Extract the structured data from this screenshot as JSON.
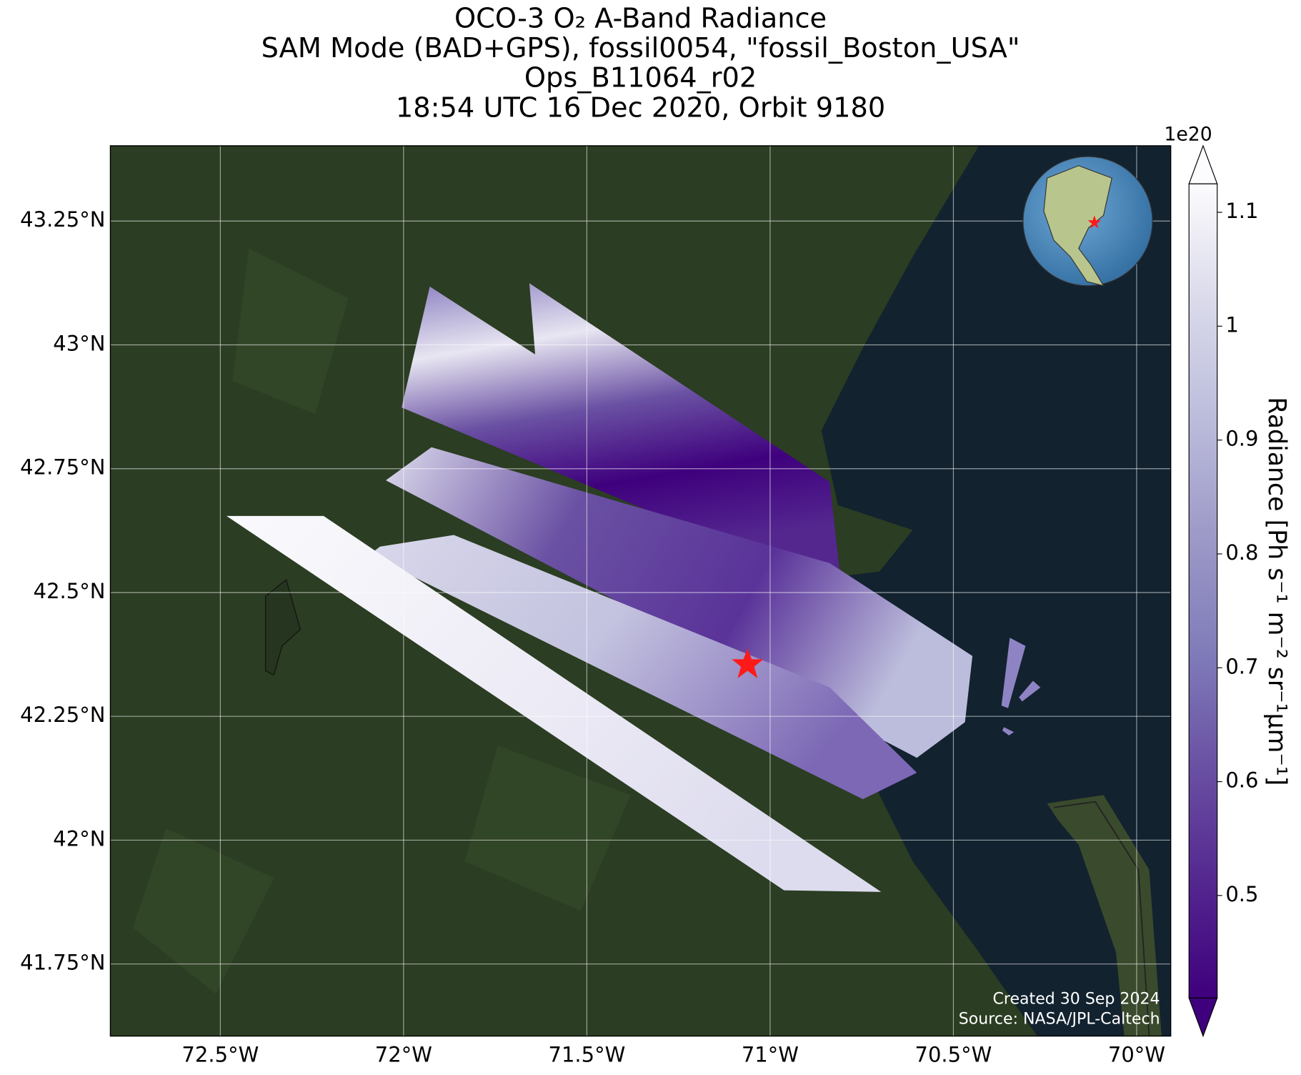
{
  "chart_data": {
    "type": "map",
    "title": [
      "OCO-3 O₂ A-Band Radiance",
      "SAM Mode (BAD+GPS), fossil0054, \"fossil_Boston_USA\"",
      "Ops_B11064_r02",
      "18:54 UTC 16 Dec 2020, Orbit 9180"
    ],
    "xlim": [
      -72.8,
      -69.907
    ],
    "ylim": [
      41.6045,
      43.402
    ],
    "xticks": [
      {
        "value": -72.5,
        "label": "72.5°W"
      },
      {
        "value": -72,
        "label": "72°W"
      },
      {
        "value": -71.5,
        "label": "71.5°W"
      },
      {
        "value": -71,
        "label": "71°W"
      },
      {
        "value": -70.5,
        "label": "70.5°W"
      },
      {
        "value": -70,
        "label": "70°W"
      }
    ],
    "yticks": [
      {
        "value": 41.75,
        "label": "41.75°N"
      },
      {
        "value": 42,
        "label": "42°N"
      },
      {
        "value": 42.25,
        "label": "42.25°N"
      },
      {
        "value": 42.5,
        "label": "42.5°N"
      },
      {
        "value": 42.75,
        "label": "42.75°N"
      },
      {
        "value": 43,
        "label": "43°N"
      },
      {
        "value": 43.25,
        "label": "43.25°N"
      }
    ],
    "grid": true,
    "colorbar": {
      "label": "Radiance [Ph s⁻¹ m⁻² sr⁻¹μm⁻¹]",
      "exponent": "1e20",
      "clim": [
        0.41,
        1.125
      ],
      "ticks": [
        0.5,
        0.6,
        0.7,
        0.8,
        0.9,
        1.0,
        1.1
      ],
      "colormap": [
        "#3f007d",
        "#54278f",
        "#6a51a3",
        "#807dba",
        "#9e9ac8",
        "#bcbddc",
        "#dadaeb",
        "#fcfbfd"
      ]
    },
    "annotations": [
      "Created 30 Sep 2024",
      "Source: NASA/JPL-Caltech"
    ]
  }
}
